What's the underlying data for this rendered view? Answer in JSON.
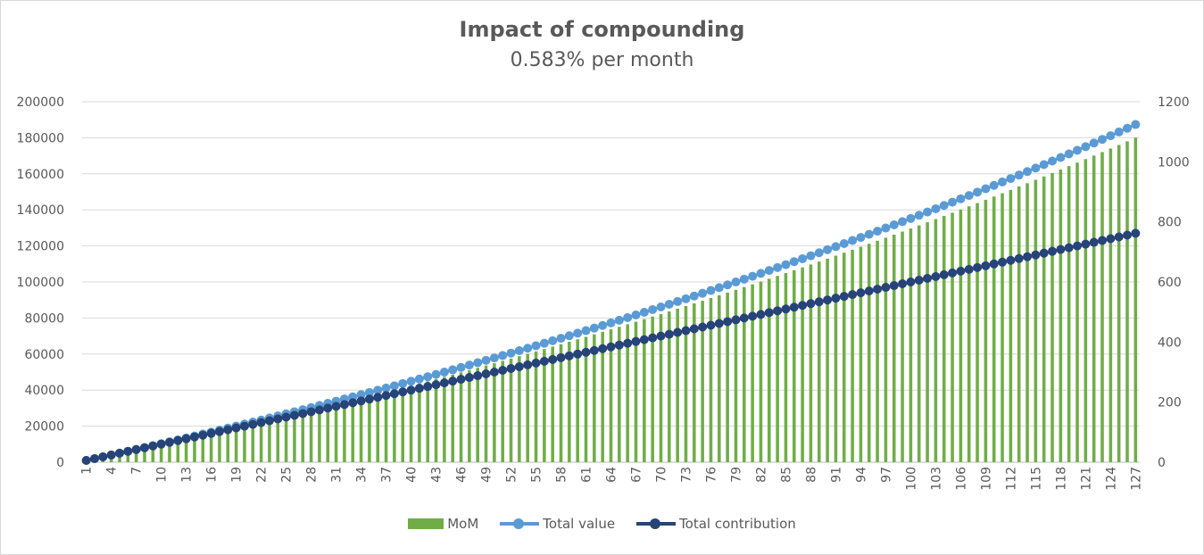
{
  "chart_data": {
    "type": "bar+line",
    "title": "Impact of compounding",
    "subtitle": "0.583% per month",
    "x": {
      "start": 1,
      "end": 127,
      "tick_labels_every": 3
    },
    "y_left": {
      "range": [
        0,
        200000
      ],
      "ticks": [
        "0",
        "20000",
        "40000",
        "60000",
        "80000",
        "100000",
        "120000",
        "140000",
        "160000",
        "180000",
        "200000"
      ]
    },
    "y_right": {
      "range": [
        0,
        1200
      ],
      "ticks": [
        "0",
        "200",
        "400",
        "600",
        "800",
        "1000",
        "1200"
      ]
    },
    "grid": true,
    "legend_position": "bottom",
    "monthly_contribution": 1000,
    "monthly_rate": 0.00583,
    "series": [
      {
        "name": "MoM",
        "type": "bar",
        "axis": "right",
        "color": "#70ad47",
        "values_description": "monthly growth on the total value, 0 at month 1 to about 1085 at month 127"
      },
      {
        "name": "Total value",
        "type": "line",
        "axis": "left",
        "color": "#5b9bd5",
        "values_description": "compounded total, 1000 at month 1 to about 187000 at month 127"
      },
      {
        "name": "Total contribution",
        "type": "line",
        "axis": "left",
        "color": "#264478",
        "values_description": "1000 per month, 1000 at month 1 to 127000 at month 127"
      }
    ]
  },
  "legend": {
    "mom": "MoM",
    "total_value": "Total value",
    "total_contribution": "Total contribution"
  }
}
